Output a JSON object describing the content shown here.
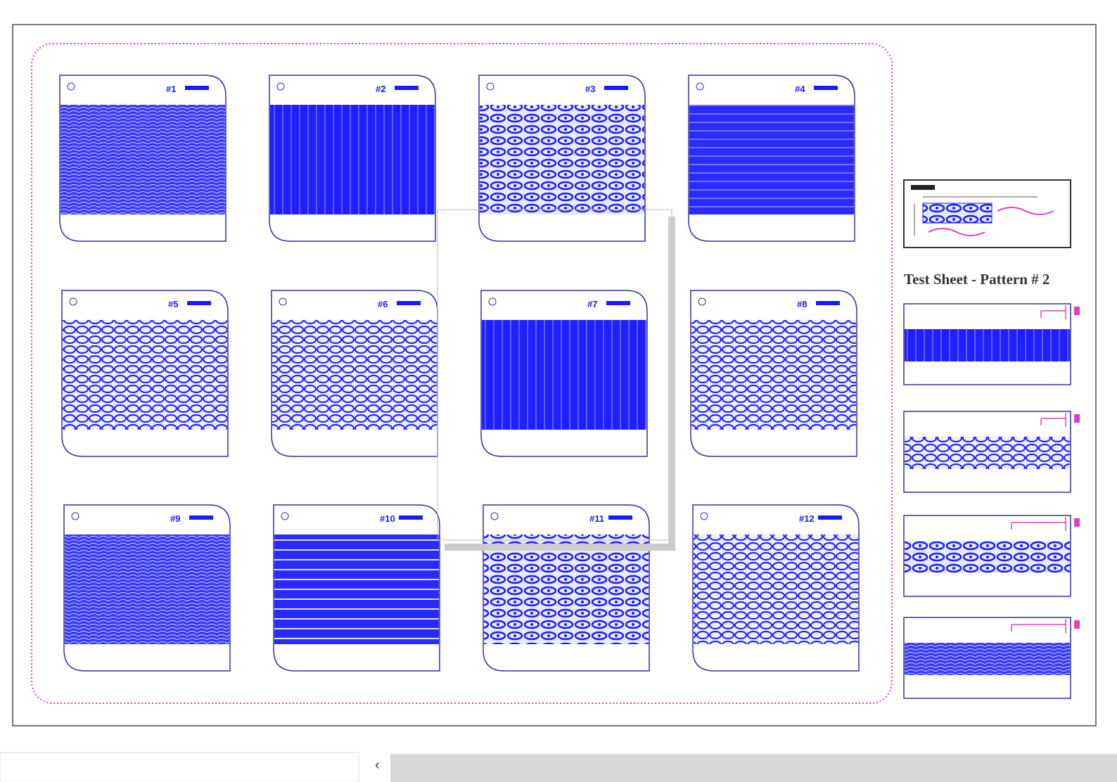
{
  "tiles": [
    {
      "label": "#1"
    },
    {
      "label": "#2"
    },
    {
      "label": "#3"
    },
    {
      "label": "#4"
    },
    {
      "label": "#5"
    },
    {
      "label": "#6"
    },
    {
      "label": "#7"
    },
    {
      "label": "#8"
    },
    {
      "label": "#9"
    },
    {
      "label": "#10"
    },
    {
      "label": "#11"
    },
    {
      "label": "#12"
    }
  ],
  "sheet_title": "Test Sheet - Pattern # 2"
}
